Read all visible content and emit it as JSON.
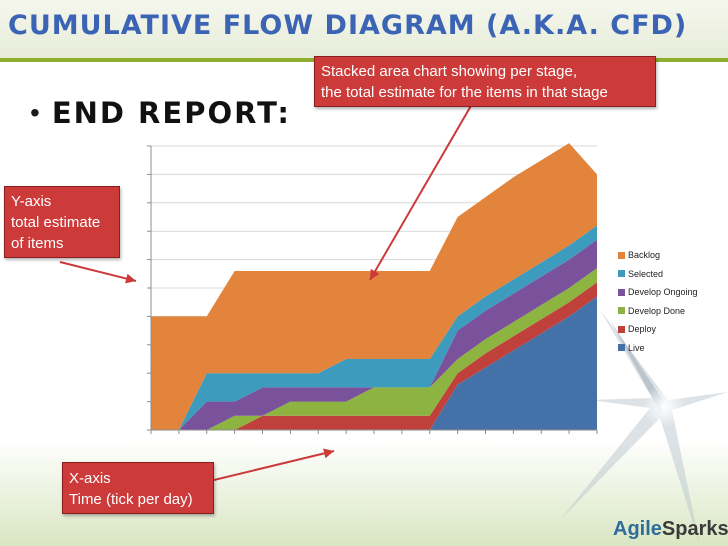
{
  "slide": {
    "title": "Cumulative Flow Diagram (a.k.a. CFD)",
    "bullet": "End Report:",
    "callouts": {
      "stage": [
        "Stacked area chart showing per stage,",
        "the total estimate for the items in that stage"
      ],
      "y_axis": [
        "Y-axis",
        "total estimate",
        "of items"
      ],
      "x_axis": [
        "X-axis",
        "Time (tick per day)"
      ]
    },
    "logo": {
      "part1": "Agile",
      "part2": "Sparks"
    },
    "colors": {
      "title": "#3c64b4",
      "callout": "#cc3a3a",
      "arrow": "#cc3a3a",
      "accent_bar": "#8fae2e"
    }
  },
  "chart_data": {
    "type": "area",
    "stacked": true,
    "x": [
      0,
      1,
      2,
      3,
      4,
      5,
      6,
      7,
      8,
      9,
      10,
      11,
      12,
      13,
      14,
      15,
      16
    ],
    "ylim": [
      0,
      10
    ],
    "grid": true,
    "legend_placement": "right",
    "series": [
      {
        "name": "Live",
        "color": "#4472a8",
        "values": [
          0,
          0,
          0,
          0,
          0,
          0,
          0,
          0,
          0,
          0,
          0,
          1.6,
          2.2,
          2.8,
          3.4,
          4.0,
          4.7
        ]
      },
      {
        "name": "Deploy",
        "color": "#c0403c",
        "values": [
          0,
          0,
          0,
          0,
          0.5,
          0.5,
          0.5,
          0.5,
          0.5,
          0.5,
          0.5,
          0.4,
          0.5,
          0.5,
          0.5,
          0.5,
          0.5
        ]
      },
      {
        "name": "Develop Done",
        "color": "#8db440",
        "values": [
          0,
          0,
          0,
          0.5,
          0,
          0.5,
          0.5,
          0.5,
          1.0,
          1.0,
          1.0,
          0.5,
          0.5,
          0.5,
          0.5,
          0.5,
          0.5
        ]
      },
      {
        "name": "Develop Ongoing",
        "color": "#7a529c",
        "values": [
          0,
          0,
          1.0,
          0.5,
          1.0,
          0.5,
          0.5,
          0.5,
          0,
          0,
          0,
          1.0,
          1.0,
          1.0,
          1.0,
          1.0,
          1.0
        ]
      },
      {
        "name": "Selected",
        "color": "#3d9bbd",
        "values": [
          0,
          0,
          1.0,
          1.0,
          0.5,
          0.5,
          0.5,
          1.0,
          1.0,
          1.0,
          1.0,
          0.5,
          0.5,
          0.5,
          0.5,
          0.5,
          0.5
        ]
      },
      {
        "name": "Backlog",
        "color": "#e2843b",
        "values": [
          4.0,
          4.0,
          2.0,
          3.6,
          3.6,
          3.6,
          3.6,
          3.1,
          3.1,
          3.1,
          3.1,
          3.5,
          3.5,
          3.6,
          3.6,
          3.6,
          1.8
        ]
      }
    ]
  }
}
